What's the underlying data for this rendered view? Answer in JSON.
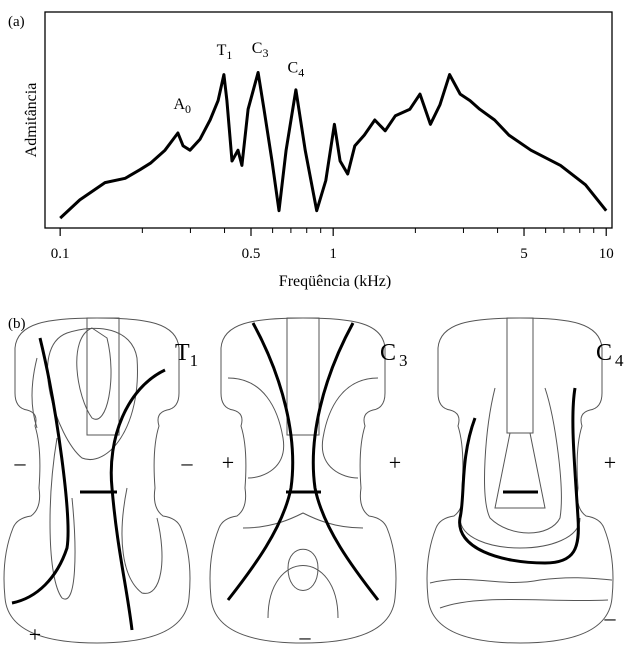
{
  "chart_data": {
    "type": "line",
    "panel_label": "(a)",
    "xlabel": "Freqüência (kHz)",
    "ylabel": "Admitância",
    "xscale": "log",
    "xlim": [
      0.088,
      10.5
    ],
    "ylim": [
      0,
      100
    ],
    "xticks": [
      0.1,
      0.5,
      1,
      5,
      10
    ],
    "xminorticks": [
      0.2,
      0.3,
      0.4,
      0.6,
      0.7,
      0.8,
      0.9,
      2,
      3,
      4,
      6,
      7,
      8,
      9
    ],
    "x": [
      0.1,
      0.118,
      0.146,
      0.173,
      0.196,
      0.214,
      0.242,
      0.27,
      0.282,
      0.299,
      0.325,
      0.354,
      0.379,
      0.398,
      0.408,
      0.426,
      0.448,
      0.463,
      0.488,
      0.531,
      0.558,
      0.597,
      0.633,
      0.672,
      0.73,
      0.79,
      0.87,
      0.94,
      1.01,
      1.06,
      1.13,
      1.2,
      1.3,
      1.42,
      1.55,
      1.69,
      1.91,
      2.08,
      2.27,
      2.46,
      2.67,
      2.92,
      3.17,
      3.44,
      3.9,
      4.4,
      5.3,
      6.8,
      8.4,
      10
    ],
    "series": [
      {
        "color": "#000000",
        "values": [
          4.6,
          13,
          21,
          23,
          27,
          30,
          36,
          44,
          38,
          36,
          41,
          50,
          59,
          71,
          59,
          31,
          36,
          29,
          55,
          72,
          55,
          31,
          8,
          36,
          64,
          36,
          8,
          22,
          48,
          31,
          25,
          38,
          43,
          50,
          45,
          52,
          55,
          62,
          48,
          57,
          71,
          62,
          59,
          55,
          50,
          43,
          36,
          29,
          20,
          8
        ]
      }
    ],
    "annotations": [
      {
        "text": "A",
        "sub": "0",
        "x": 0.28,
        "y": 55
      },
      {
        "text": "T",
        "sub": "1",
        "x": 0.4,
        "y": 80
      },
      {
        "text": "C",
        "sub": "3",
        "x": 0.54,
        "y": 81
      },
      {
        "text": "C",
        "sub": "4",
        "x": 0.73,
        "y": 72
      }
    ]
  },
  "panel_b": {
    "label": "(b)",
    "modes": [
      {
        "letter": "T",
        "sub": "1",
        "signs": [
          "–",
          "–",
          "+"
        ]
      },
      {
        "letter": "C",
        "sub": "3",
        "signs": [
          "+",
          "+",
          "–"
        ]
      },
      {
        "letter": "C",
        "sub": "4",
        "signs": [
          "+",
          "–"
        ]
      }
    ]
  }
}
